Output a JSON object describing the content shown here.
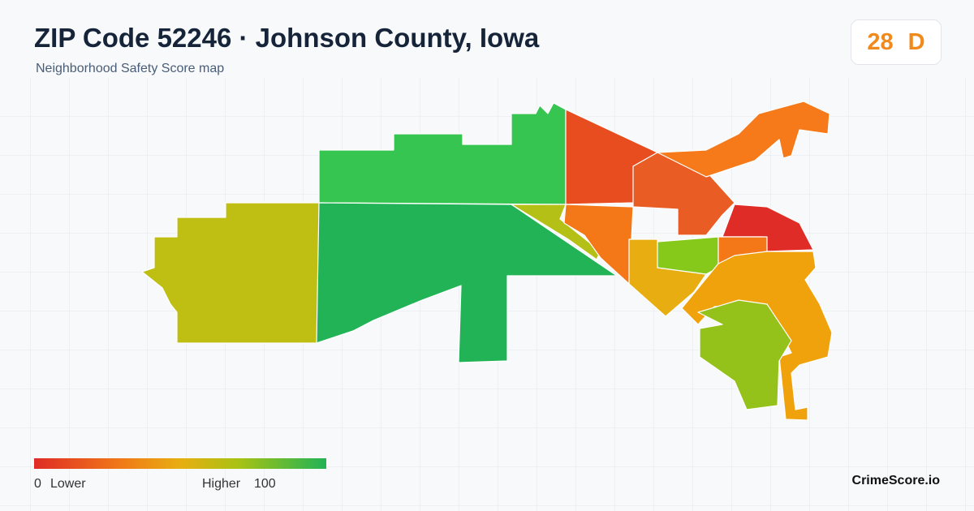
{
  "header": {
    "title": "ZIP Code 52246 · Johnson County, Iowa",
    "subtitle": "Neighborhood Safety Score map"
  },
  "score": {
    "value": 28,
    "grade": "D"
  },
  "legend": {
    "min": "0",
    "min_label": "Lower",
    "max_label": "Higher",
    "max": "100"
  },
  "brand": "CrimeScore.io"
}
